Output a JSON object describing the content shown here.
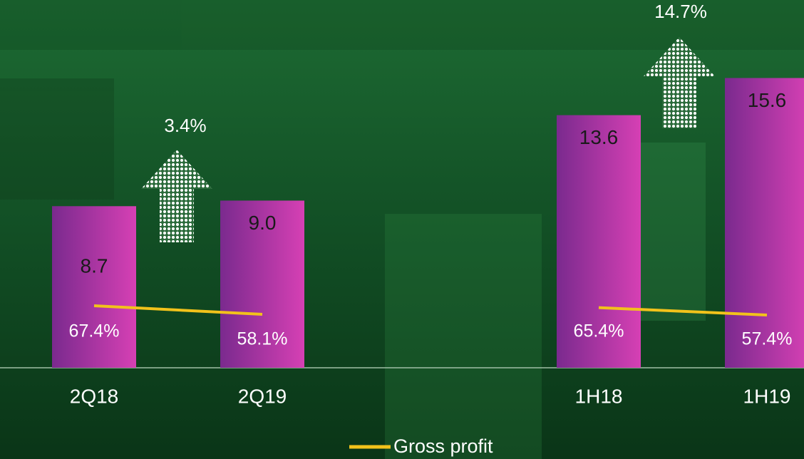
{
  "chart_data": {
    "type": "bar",
    "categories": [
      "2Q18",
      "2Q19",
      "1H18",
      "1H19"
    ],
    "values": [
      8.7,
      9.0,
      13.6,
      15.6
    ],
    "value_labels": [
      "8.7",
      "9.0",
      "13.6",
      "15.6"
    ],
    "color": [
      "#7a2a8e",
      "#d640b4"
    ],
    "ylim": [
      0,
      19.8
    ],
    "y2lim": [
      0,
      400
    ],
    "series": [
      {
        "name": "Gross profit",
        "color": "#f2c21b",
        "axis": "y2",
        "values": [
          67.4,
          58.1,
          65.4,
          57.4
        ],
        "value_labels": [
          "67.4%",
          "58.1%",
          "65.4%",
          "57.4%"
        ]
      }
    ],
    "annotations": [
      "3.4%",
      "14.7%"
    ],
    "legend": "bottom"
  }
}
